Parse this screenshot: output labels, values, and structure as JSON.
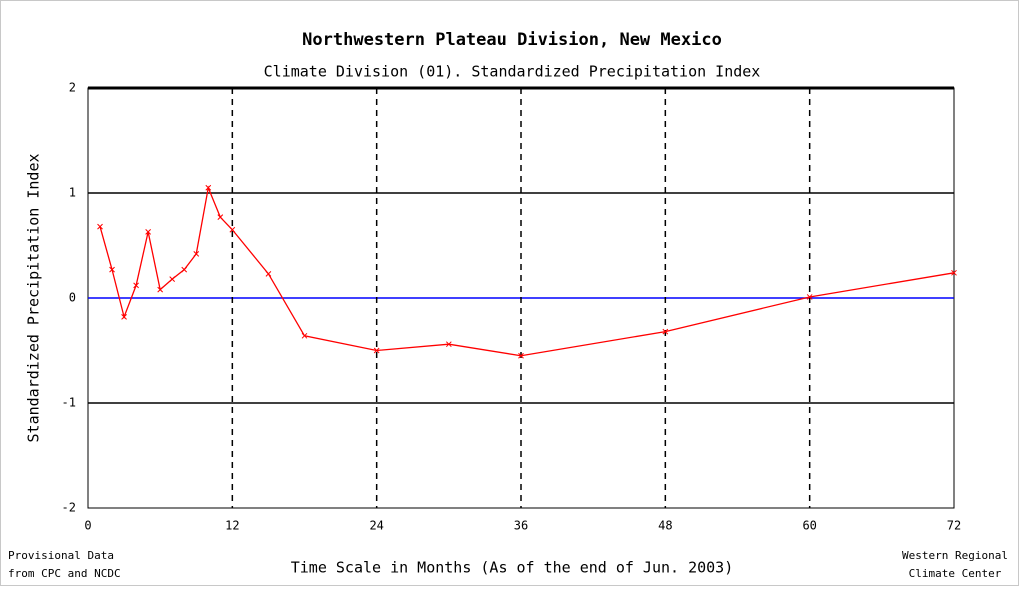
{
  "chart_data": {
    "type": "line",
    "title": "Northwestern Plateau Division, New Mexico",
    "subtitle": "Climate Division (01).  Standardized Precipitation Index",
    "y_label": "Standardized Precipitation Index",
    "x_label": "Time Scale in Months (As of the end of Jun. 2003)",
    "footnote_left": [
      "Provisional Data",
      "from CPC and NCDC"
    ],
    "footnote_right": [
      "Western Regional",
      "Climate Center"
    ],
    "x": [
      1,
      2,
      3,
      4,
      5,
      6,
      7,
      8,
      9,
      10,
      11,
      12,
      15,
      18,
      24,
      30,
      36,
      48,
      60,
      72
    ],
    "series": [
      {
        "name": "SPI",
        "color": "#ff0000",
        "values": [
          0.68,
          0.27,
          -0.18,
          0.12,
          0.63,
          0.08,
          0.18,
          0.27,
          0.42,
          1.05,
          0.77,
          0.65,
          0.23,
          -0.36,
          -0.5,
          -0.44,
          -0.55,
          -0.32,
          0.01,
          0.24
        ]
      }
    ],
    "xlim": [
      0,
      72
    ],
    "xticks": [
      0,
      12,
      24,
      36,
      48,
      60,
      72
    ],
    "ylim": [
      -2,
      2
    ],
    "yticks": [
      -2,
      -1,
      0,
      1,
      2
    ],
    "grid": true,
    "grid_color": "#000000",
    "zero_line_color": "#0000ff"
  }
}
